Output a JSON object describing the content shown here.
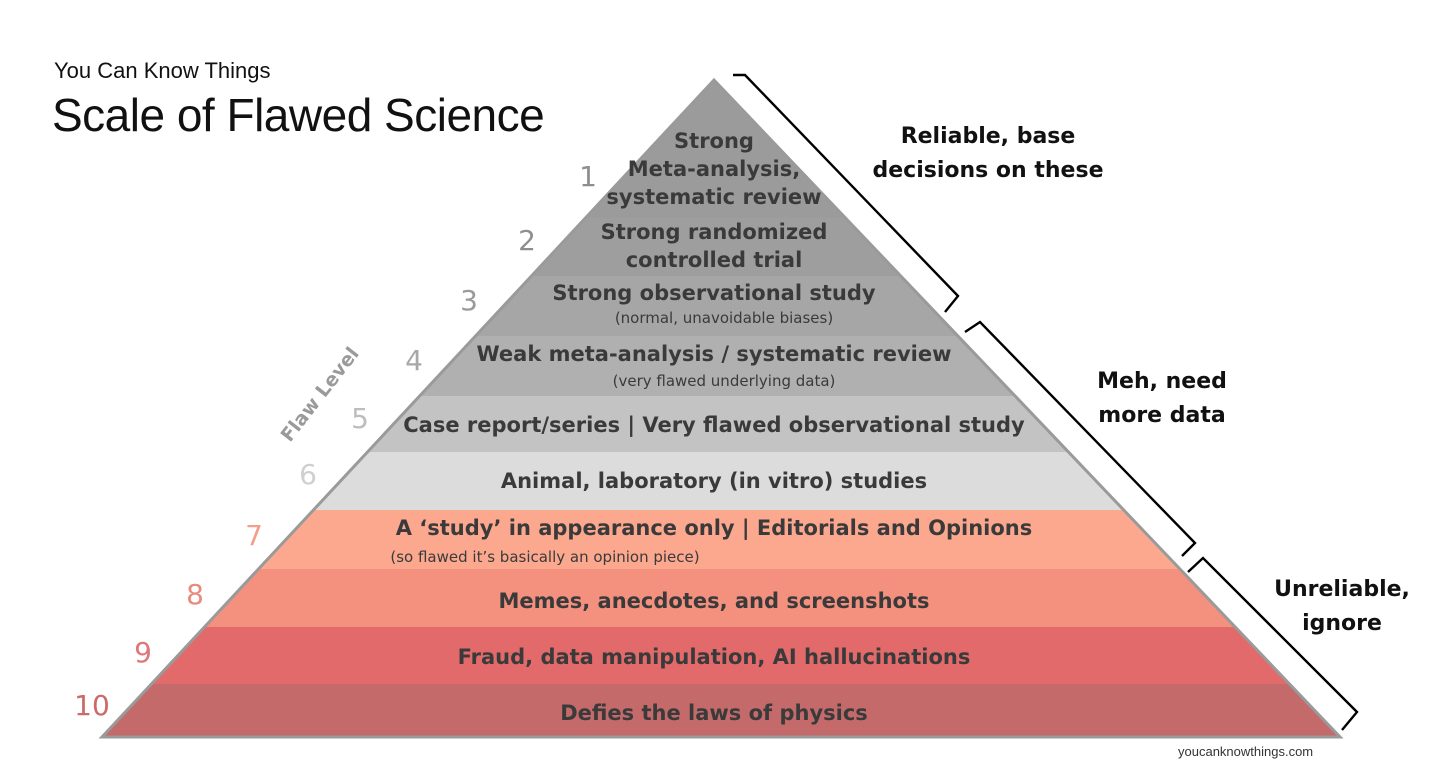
{
  "brand": "You Can Know Things",
  "title": "Scale of Flawed Science",
  "axis_label": "Flaw Level",
  "footer": "youcanknowthings.com",
  "levels": [
    {
      "number": "1",
      "lines": [
        "Strong",
        "Meta-analysis,",
        "systematic review"
      ],
      "sub": "",
      "fill": "#9b9b9b",
      "num_color": "#8e8e8e"
    },
    {
      "number": "2",
      "lines": [
        "Strong randomized",
        "controlled trial"
      ],
      "sub": "",
      "fill": "#9e9e9e",
      "num_color": "#8e8e8e"
    },
    {
      "number": "3",
      "lines": [
        "Strong observational study"
      ],
      "sub": "(normal, unavoidable biases)",
      "fill": "#a6a6a6",
      "num_color": "#9a9a9a"
    },
    {
      "number": "4",
      "lines": [
        "Weak meta-analysis / systematic review"
      ],
      "sub": "(very flawed underlying data)",
      "fill": "#b0b0b0",
      "num_color": "#a8a8a8"
    },
    {
      "number": "5",
      "lines": [
        "Case report/series | Very flawed observational study"
      ],
      "sub": "",
      "fill": "#c3c3c3",
      "num_color": "#bdbdbd"
    },
    {
      "number": "6",
      "lines": [
        "Animal, laboratory (in vitro) studies"
      ],
      "sub": "",
      "fill": "#dcdcdc",
      "num_color": "#cfcfcf"
    },
    {
      "number": "7",
      "lines": [
        "A ‘study’ in appearance only | Editorials and Opinions"
      ],
      "sub": "(so flawed it’s basically an opinion piece)",
      "fill": "#fca88f",
      "num_color": "#f1a08c"
    },
    {
      "number": "8",
      "lines": [
        "Memes, anecdotes, and screenshots"
      ],
      "sub": "",
      "fill": "#f4907e",
      "num_color": "#e98a7c"
    },
    {
      "number": "9",
      "lines": [
        "Fraud, data manipulation, AI hallucinations"
      ],
      "sub": "",
      "fill": "#e26a6a",
      "num_color": "#e0777a"
    },
    {
      "number": "10",
      "lines": [
        "Defies the laws of physics"
      ],
      "sub": "",
      "fill": "#c46a6a",
      "num_color": "#cc6a6a"
    }
  ],
  "groups": [
    {
      "lines": [
        "Reliable, base",
        "decisions on these"
      ]
    },
    {
      "lines": [
        "Meh, need",
        "more data"
      ]
    },
    {
      "lines": [
        "Unreliable,",
        "ignore"
      ]
    }
  ],
  "colors": {
    "outline": "#9a9a9a",
    "bracket": "#000000",
    "text": "#3a3a3a"
  }
}
